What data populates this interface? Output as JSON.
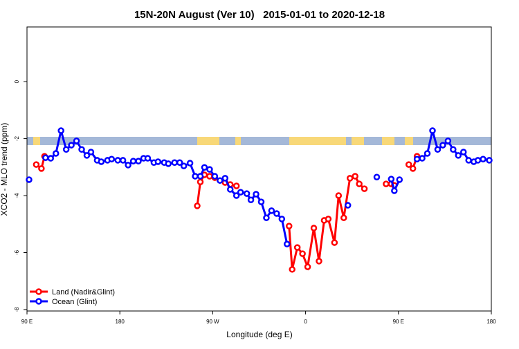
{
  "chart_data": {
    "type": "line",
    "title": "15N-20N August (Ver 10)   2015-01-01 to 2020-12-18",
    "xlabel": "Longitude (deg E)",
    "ylabel": "XCO2 - MLO trend (ppm)",
    "xlim": [
      90,
      540
    ],
    "ylim": [
      -8.05,
      1.92
    ],
    "xticks": [
      {
        "value": 90,
        "label": "90 E"
      },
      {
        "value": 180,
        "label": "180"
      },
      {
        "value": 270,
        "label": "90 W"
      },
      {
        "value": 360,
        "label": "0"
      },
      {
        "value": 450,
        "label": "90 E"
      },
      {
        "value": 540,
        "label": "180"
      }
    ],
    "yticks": [
      0,
      -2,
      -4,
      -6,
      -8
    ],
    "legend": "bottom-left",
    "series": [
      {
        "name": "Land (Nadir&Glint)",
        "color": "#ff0000",
        "x": [
          99,
          104,
          107,
          180,
          255,
          258,
          262,
          267,
          272,
          282,
          287,
          293,
          300,
          344,
          347,
          352,
          357,
          362,
          368,
          373,
          378,
          382,
          388,
          392,
          397,
          403,
          408,
          412,
          417,
          425,
          438,
          443,
          446,
          452,
          460,
          464,
          468
        ],
        "values": [
          -2.91,
          -3.05,
          -2.62,
          null,
          -4.36,
          -3.52,
          -3.27,
          -3.32,
          -3.37,
          -3.54,
          -3.61,
          -3.66,
          null,
          -5.07,
          -6.59,
          -5.82,
          -6.04,
          -6.5,
          -5.14,
          -6.3,
          -4.87,
          -4.82,
          -5.65,
          -4.0,
          -4.78,
          -3.39,
          -3.32,
          -3.59,
          -3.76,
          null,
          -3.59,
          -3.59,
          -3.64,
          null,
          -2.91,
          -3.05,
          -2.62
        ]
      },
      {
        "name": "Ocean (Glint)",
        "color": "#0000ff",
        "x": [
          92,
          100,
          108,
          113,
          118,
          123,
          128,
          133,
          138,
          143,
          148,
          152,
          158,
          162,
          168,
          172,
          178,
          183,
          188,
          193,
          198,
          203,
          207,
          213,
          217,
          223,
          227,
          233,
          238,
          242,
          248,
          253,
          258,
          262,
          267,
          272,
          277,
          282,
          287,
          293,
          297,
          303,
          307,
          312,
          317,
          322,
          327,
          332,
          337,
          342,
          370,
          401,
          415,
          429,
          436,
          443,
          446,
          451,
          460,
          468,
          473,
          478,
          483,
          488,
          493,
          498,
          503,
          508,
          513,
          518,
          523,
          527,
          532,
          538
        ],
        "values": [
          -3.44,
          null,
          -2.67,
          -2.69,
          -2.52,
          -1.72,
          -2.38,
          -2.23,
          -2.08,
          -2.38,
          -2.59,
          -2.47,
          -2.76,
          -2.81,
          -2.76,
          -2.72,
          -2.76,
          -2.76,
          -2.93,
          -2.79,
          -2.79,
          -2.69,
          -2.69,
          -2.84,
          -2.81,
          -2.84,
          -2.88,
          -2.84,
          -2.84,
          -2.96,
          -2.86,
          -3.32,
          -3.32,
          -3.01,
          -3.08,
          -3.32,
          -3.47,
          -3.39,
          -3.78,
          -4.0,
          -3.88,
          -3.93,
          -4.15,
          -3.95,
          -4.22,
          -4.78,
          -4.53,
          -4.63,
          -4.82,
          -5.7,
          null,
          -4.34,
          null,
          -3.35,
          null,
          -3.42,
          -3.83,
          -3.44,
          null,
          -2.72,
          -2.69,
          -2.52,
          -1.72,
          -2.38,
          -2.23,
          -2.08,
          -2.38,
          -2.59,
          -2.47,
          -2.76,
          -2.81,
          -2.76,
          -2.72,
          -2.76
        ]
      }
    ]
  }
}
